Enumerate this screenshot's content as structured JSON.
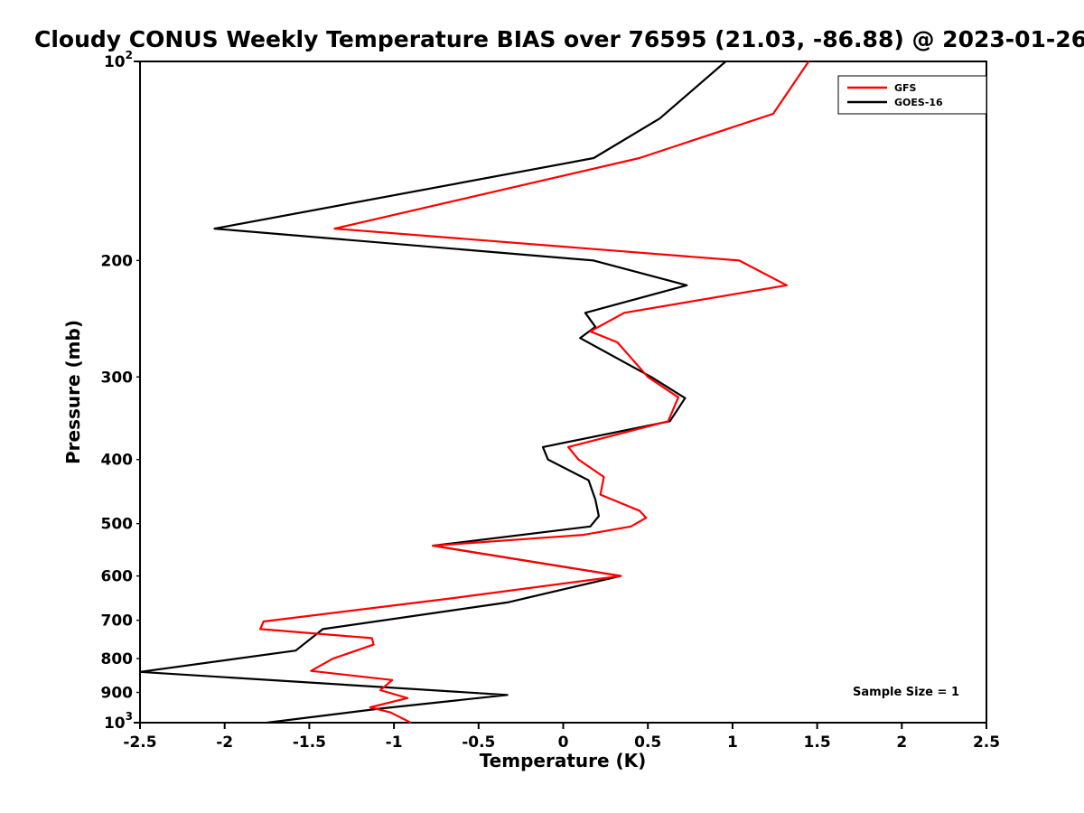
{
  "chart_data": {
    "type": "line",
    "title": "Cloudy CONUS Weekly Temperature BIAS over 76595 (21.03, -86.88) @ 2023-01-26",
    "xlabel": "Temperature (K)",
    "ylabel": "Pressure (mb)",
    "note": "Sample Size = 1",
    "xlim": [
      -2.5,
      2.5
    ],
    "ylim_mb": [
      100,
      1000
    ],
    "yscale": "log",
    "y_axis_inverted": true,
    "grid": false,
    "legend_position": "upper right",
    "background_color": "#ffffff",
    "axis_color": "#000000",
    "xticks": [
      {
        "value": -2.5,
        "label": "-2.5"
      },
      {
        "value": -2,
        "label": "-2"
      },
      {
        "value": -1.5,
        "label": "-1.5"
      },
      {
        "value": -1,
        "label": "-1"
      },
      {
        "value": -0.5,
        "label": "-0.5"
      },
      {
        "value": 0,
        "label": "0"
      },
      {
        "value": 0.5,
        "label": "0.5"
      },
      {
        "value": 1,
        "label": "1"
      },
      {
        "value": 1.5,
        "label": "1.5"
      },
      {
        "value": 2,
        "label": "2"
      },
      {
        "value": 2.5,
        "label": "2.5"
      }
    ],
    "yticks_major": [
      {
        "value": 100,
        "mantissa": "10",
        "exponent": "2"
      },
      {
        "value": 1000,
        "mantissa": "10",
        "exponent": "3"
      }
    ],
    "yticks_minor": [
      {
        "value": 200,
        "label": "200"
      },
      {
        "value": 300,
        "label": "300"
      },
      {
        "value": 400,
        "label": "400"
      },
      {
        "value": 500,
        "label": "500"
      },
      {
        "value": 600,
        "label": "600"
      },
      {
        "value": 700,
        "label": "700"
      },
      {
        "value": 800,
        "label": "800"
      },
      {
        "value": 900,
        "label": "900"
      }
    ],
    "series": [
      {
        "name": "GFS",
        "color": "#ff0000",
        "pressure_mb": [
          100,
          120,
          140,
          179,
          200,
          218,
          240,
          256,
          266,
          300,
          322,
          350,
          383,
          400,
          425,
          452,
          478,
          490,
          505,
          520,
          540,
          600,
          648,
          703,
          722,
          745,
          762,
          800,
          835,
          862,
          893,
          918,
          948,
          965,
          1000
        ],
        "bias_k": [
          1.45,
          1.24,
          0.45,
          -1.35,
          1.04,
          1.32,
          0.36,
          0.16,
          0.32,
          0.5,
          0.68,
          0.62,
          0.03,
          0.09,
          0.24,
          0.22,
          0.45,
          0.49,
          0.4,
          0.12,
          -0.77,
          0.34,
          -0.65,
          -1.77,
          -1.79,
          -1.13,
          -1.12,
          -1.36,
          -1.49,
          -1.01,
          -1.08,
          -0.92,
          -1.14,
          -1.02,
          -0.9
        ]
      },
      {
        "name": "GOES-16",
        "color": "#000000",
        "pressure_mb": [
          100,
          122,
          140,
          179,
          200,
          218,
          240,
          252,
          262,
          300,
          323,
          350,
          383,
          400,
          430,
          460,
          487,
          505,
          540,
          600,
          658,
          722,
          778,
          838,
          908,
          952,
          1000
        ],
        "bias_k": [
          0.96,
          0.57,
          0.18,
          -2.06,
          0.18,
          0.73,
          0.13,
          0.19,
          0.1,
          0.52,
          0.72,
          0.63,
          -0.12,
          -0.09,
          0.15,
          0.19,
          0.21,
          0.16,
          -0.77,
          0.34,
          -0.33,
          -1.42,
          -1.58,
          -2.5,
          -0.33,
          -1.08,
          -1.75
        ]
      }
    ]
  }
}
